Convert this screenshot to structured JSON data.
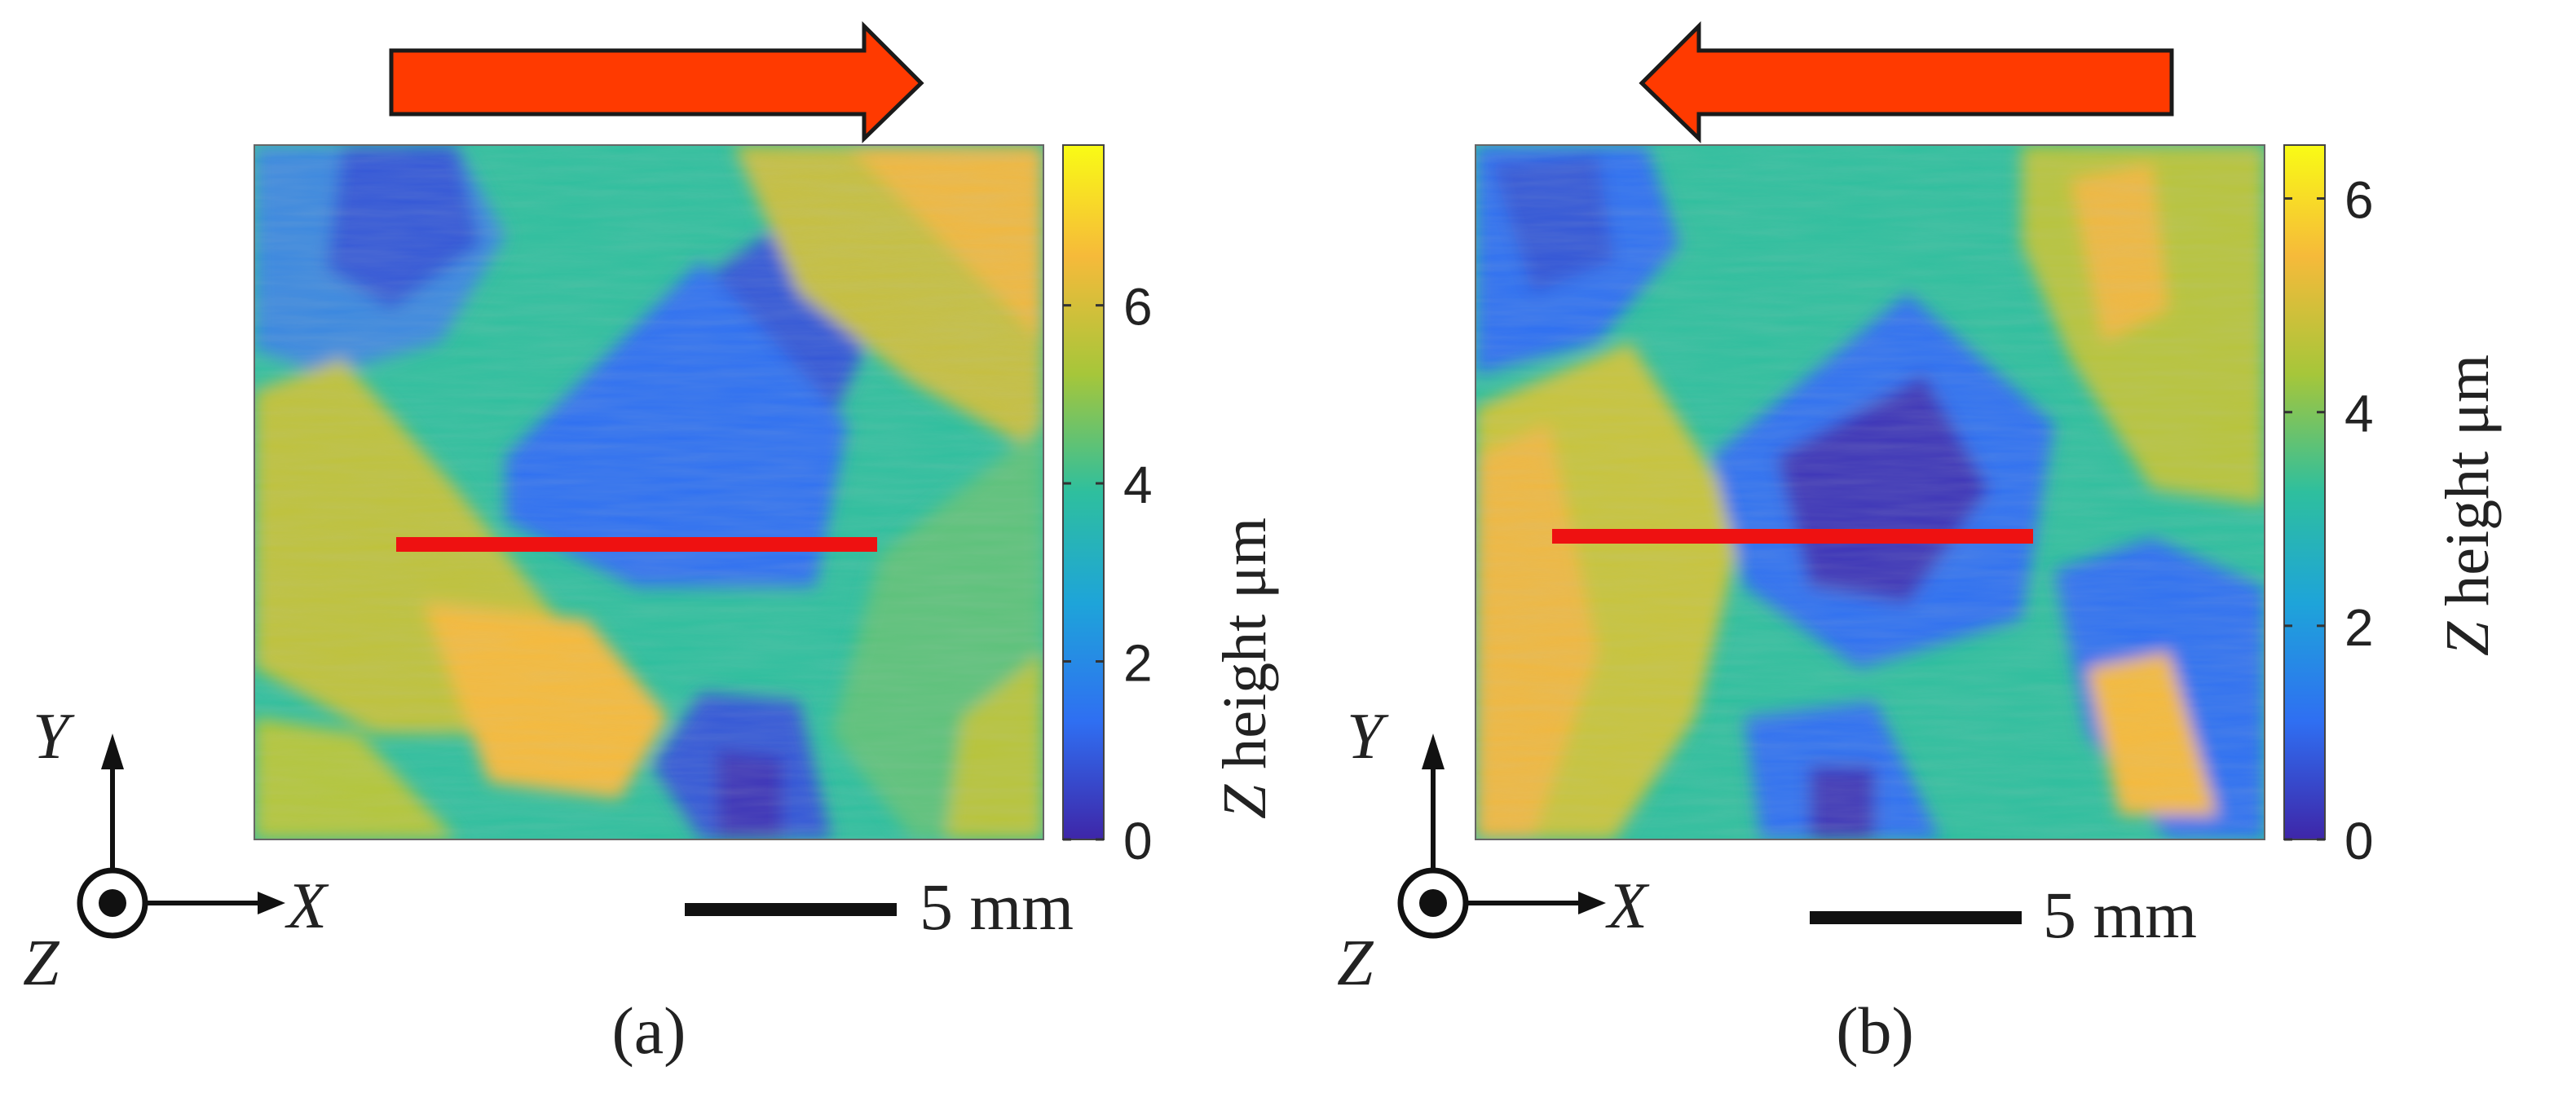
{
  "panels": [
    {
      "label": "(a)",
      "arrow_direction": "right",
      "colorbar_ticks": [
        "0",
        "2",
        "4",
        "6"
      ],
      "colorbar_max": 7.8,
      "colorbar_label_var": "Z",
      "colorbar_label_rest": " height μm",
      "scale_bar_text": "5 mm"
    },
    {
      "label": "(b)",
      "arrow_direction": "left",
      "colorbar_ticks": [
        "0",
        "2",
        "4",
        "6"
      ],
      "colorbar_max": 6.5,
      "colorbar_label_var": "Z",
      "colorbar_label_rest": " height μm",
      "scale_bar_text": "5 mm"
    }
  ],
  "axes": {
    "x": "X",
    "y": "Y",
    "z": "Z"
  },
  "colors": {
    "arrow_fill": "#ff3a00",
    "arrow_stroke": "#1a1a1a",
    "profile_line": "#ee1111",
    "colormap": [
      "#3e26a8",
      "#2f6ff2",
      "#1ea4d9",
      "#2ebf9e",
      "#a6c63a",
      "#f6ba3a",
      "#f9fb15"
    ]
  }
}
